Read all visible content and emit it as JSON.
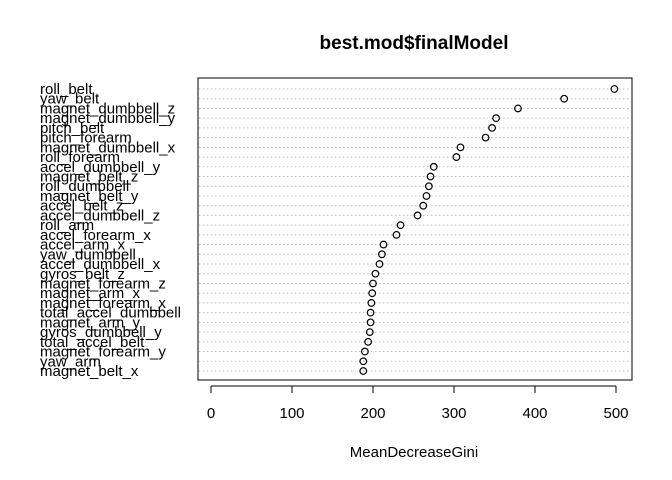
{
  "chart_data": {
    "type": "scatter",
    "title": "best.mod$finalModel",
    "xlabel": "MeanDecreaseGini",
    "ylabel": "",
    "xlim": [
      0,
      500
    ],
    "xticks": [
      0,
      100,
      200,
      300,
      400,
      500
    ],
    "grid": "dotted horizontal guides",
    "categories": [
      "roll_belt",
      "yaw_belt",
      "magnet_dumbbell_z",
      "magnet_dumbbell_y",
      "pitch_belt",
      "pitch_forearm",
      "magnet_dumbbell_x",
      "roll_forearm",
      "accel_dumbbell_y",
      "magnet_belt_z",
      "roll_dumbbell",
      "magnet_belt_y",
      "accel_belt_z",
      "accel_dumbbell_z",
      "roll_arm",
      "accel_forearm_x",
      "accel_arm_x",
      "yaw_dumbbell",
      "accel_dumbbell_x",
      "gyros_belt_z",
      "magnet_forearm_z",
      "magnet_arm_x",
      "magnet_forearm_x",
      "total_accel_dumbbell",
      "magnet_arm_y",
      "gyros_dumbbell_y",
      "total_accel_belt",
      "magnet_forearm_y",
      "yaw_arm",
      "magnet_belt_x"
    ],
    "values": [
      498,
      436,
      379,
      352,
      347,
      339,
      308,
      303,
      275,
      271,
      269,
      266,
      262,
      255,
      234,
      229,
      213,
      211,
      208,
      203,
      200,
      199,
      198,
      197,
      197,
      196,
      194,
      190,
      188,
      188
    ]
  }
}
